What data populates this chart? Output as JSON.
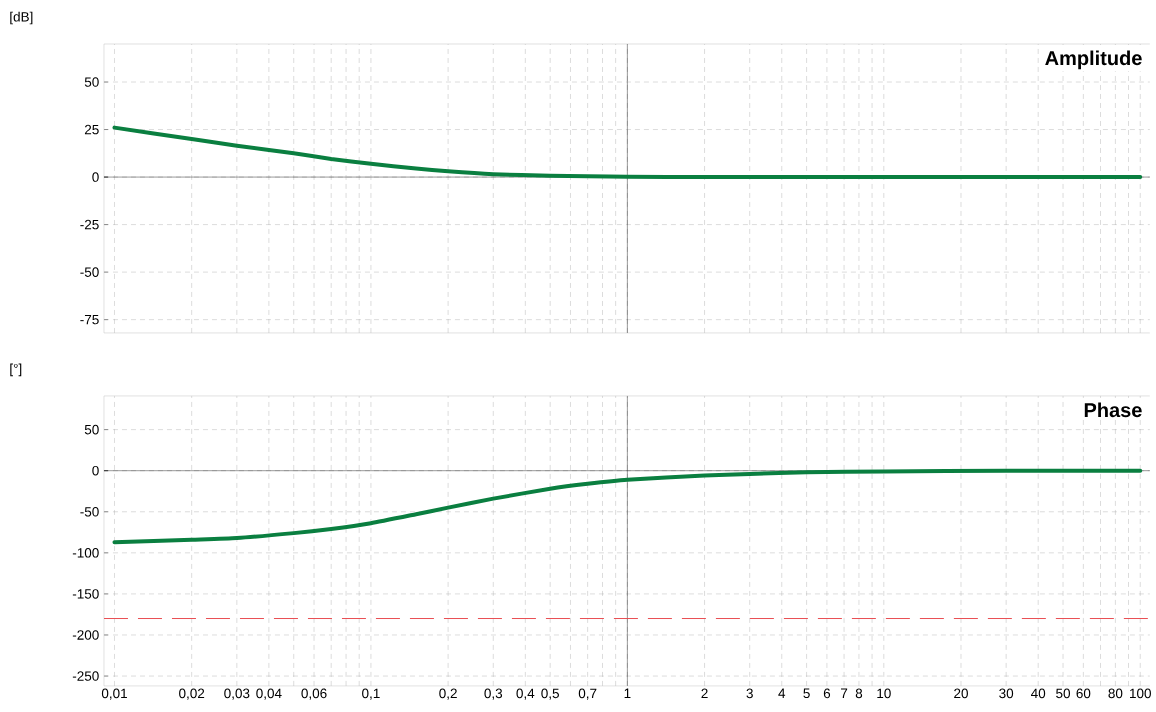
{
  "chart_data": [
    {
      "type": "line",
      "title": "Amplitude",
      "ylabel": "[dB]",
      "log": "x",
      "grid": true,
      "tick_labels": "y",
      "x": [
        0.01,
        0.02,
        0.03,
        0.05,
        0.07,
        0.1,
        0.15,
        0.2,
        0.3,
        0.5,
        0.7,
        1,
        2,
        5,
        10,
        100
      ],
      "series": [
        {
          "color": "#0a7f40",
          "values": [
            26,
            20,
            16.5,
            12.5,
            9.5,
            7,
            4.5,
            3,
            1.5,
            0.7,
            0.4,
            0.2,
            0,
            0,
            0,
            0
          ]
        }
      ],
      "xlim": [
        0.0091,
        109
      ],
      "ylim": [
        -82,
        70
      ],
      "xticks": [
        0.01,
        0.02,
        0.03,
        0.04,
        0.05,
        0.06,
        0.07,
        0.08,
        0.09,
        0.1,
        0.2,
        0.3,
        0.4,
        0.5,
        0.6,
        0.7,
        0.8,
        0.9,
        1,
        2,
        3,
        4,
        5,
        6,
        7,
        8,
        9,
        10,
        20,
        30,
        40,
        50,
        60,
        70,
        80,
        90,
        100
      ],
      "yticks": [
        -75,
        -50,
        -25,
        0,
        25,
        50
      ]
    },
    {
      "type": "line",
      "title": "Phase",
      "ylabel": "[°]",
      "log": "x",
      "grid": true,
      "x": [
        0.01,
        0.02,
        0.03,
        0.05,
        0.07,
        0.1,
        0.15,
        0.2,
        0.3,
        0.5,
        0.7,
        1,
        2,
        3,
        5,
        10,
        30,
        100
      ],
      "series": [
        {
          "color": "#0a7f40",
          "values": [
            -87,
            -84,
            -82,
            -76,
            -71,
            -64,
            -53,
            -45,
            -34,
            -22,
            -16,
            -11,
            -6,
            -4,
            -2,
            -1,
            0,
            0
          ]
        }
      ],
      "xlim": [
        0.0091,
        109
      ],
      "ylim": [
        -262,
        91
      ],
      "xticks": [
        {
          "value": 0.01,
          "label": "0,01"
        },
        {
          "value": 0.02,
          "label": "0,02"
        },
        {
          "value": 0.03,
          "label": "0,03"
        },
        {
          "value": 0.04,
          "label": "0,04"
        },
        {
          "value": 0.05,
          "label": null
        },
        {
          "value": 0.06,
          "label": "0,06"
        },
        {
          "value": 0.07,
          "label": null
        },
        {
          "value": 0.08,
          "label": null
        },
        {
          "value": 0.09,
          "label": null
        },
        {
          "value": 0.1,
          "label": "0,1"
        },
        {
          "value": 0.2,
          "label": "0,2"
        },
        {
          "value": 0.3,
          "label": "0,3"
        },
        {
          "value": 0.4,
          "label": "0,4"
        },
        {
          "value": 0.5,
          "label": "0,5"
        },
        {
          "value": 0.6,
          "label": null
        },
        {
          "value": 0.7,
          "label": "0,7"
        },
        {
          "value": 0.8,
          "label": null
        },
        {
          "value": 0.9,
          "label": null
        },
        1,
        2,
        3,
        4,
        5,
        6,
        7,
        8,
        {
          "value": 9,
          "label": null
        },
        10,
        20,
        30,
        40,
        50,
        60,
        {
          "value": 70,
          "label": null
        },
        80,
        {
          "value": 90,
          "label": null
        },
        100
      ],
      "yticks": [
        -250,
        -200,
        -150,
        -100,
        -50,
        0,
        50
      ],
      "ref_lines": [
        {
          "axis": "y",
          "value": -180,
          "color": "#e8474c",
          "line_style": "dashed"
        }
      ]
    }
  ]
}
